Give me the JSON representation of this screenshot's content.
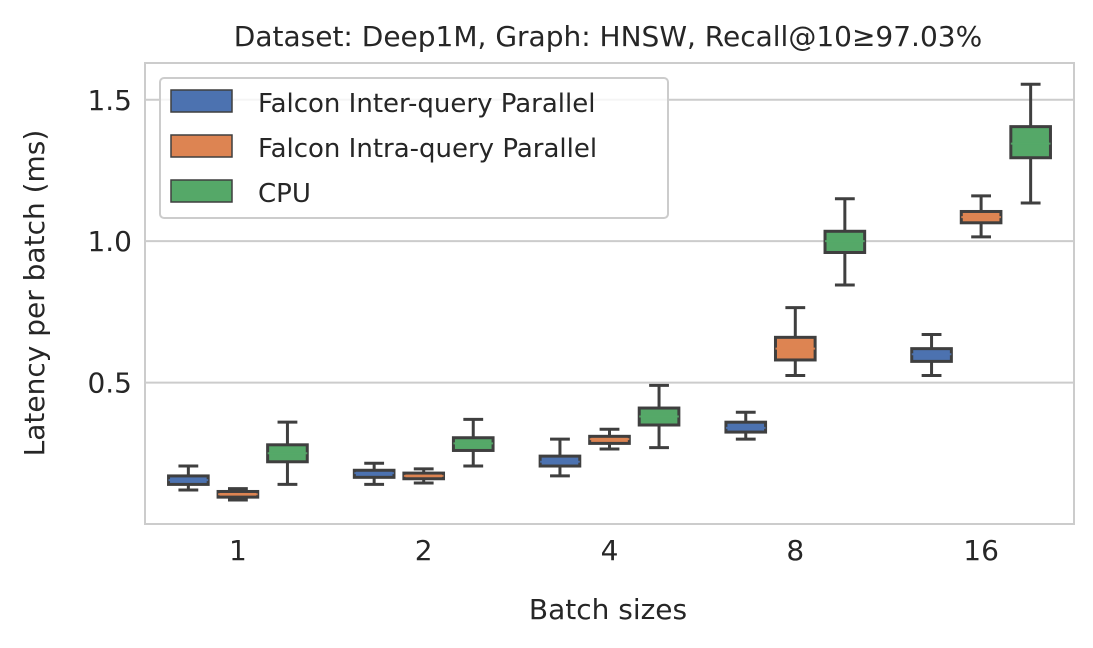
{
  "chart_data": {
    "type": "box",
    "title": "Dataset: Deep1M, Graph: HNSW, Recall@10≥97.03%",
    "xlabel": "Batch sizes",
    "ylabel": "Latency per batch (ms)",
    "categories": [
      "1",
      "2",
      "4",
      "8",
      "16"
    ],
    "ylim": [
      0.0,
      1.63
    ],
    "yticks": [
      0.5,
      1.0,
      1.5
    ],
    "ytick_labels": [
      "0.5",
      "1.0",
      "1.5"
    ],
    "grid": "horizontal",
    "legend_position": "top-left",
    "series": [
      {
        "name": "Falcon Inter-query Parallel",
        "color": "#4c72b0",
        "boxes": [
          {
            "min": 0.12,
            "q1": 0.14,
            "median": 0.155,
            "q3": 0.17,
            "max": 0.205
          },
          {
            "min": 0.14,
            "q1": 0.165,
            "median": 0.18,
            "q3": 0.19,
            "max": 0.215
          },
          {
            "min": 0.17,
            "q1": 0.205,
            "median": 0.22,
            "q3": 0.24,
            "max": 0.3
          },
          {
            "min": 0.3,
            "q1": 0.325,
            "median": 0.34,
            "q3": 0.36,
            "max": 0.395
          },
          {
            "min": 0.525,
            "q1": 0.575,
            "median": 0.6,
            "q3": 0.62,
            "max": 0.67
          }
        ]
      },
      {
        "name": "Falcon Intra-query Parallel",
        "color": "#dd8452",
        "boxes": [
          {
            "min": 0.085,
            "q1": 0.095,
            "median": 0.105,
            "q3": 0.115,
            "max": 0.125
          },
          {
            "min": 0.145,
            "q1": 0.16,
            "median": 0.17,
            "q3": 0.18,
            "max": 0.195
          },
          {
            "min": 0.265,
            "q1": 0.285,
            "median": 0.3,
            "q3": 0.31,
            "max": 0.335
          },
          {
            "min": 0.525,
            "q1": 0.58,
            "median": 0.62,
            "q3": 0.66,
            "max": 0.765
          },
          {
            "min": 1.015,
            "q1": 1.065,
            "median": 1.085,
            "q3": 1.105,
            "max": 1.16
          }
        ]
      },
      {
        "name": "CPU",
        "color": "#55a868",
        "boxes": [
          {
            "min": 0.14,
            "q1": 0.22,
            "median": 0.25,
            "q3": 0.28,
            "max": 0.36
          },
          {
            "min": 0.205,
            "q1": 0.26,
            "median": 0.285,
            "q3": 0.305,
            "max": 0.37
          },
          {
            "min": 0.27,
            "q1": 0.35,
            "median": 0.38,
            "q3": 0.41,
            "max": 0.49
          },
          {
            "min": 0.845,
            "q1": 0.96,
            "median": 1.0,
            "q3": 1.035,
            "max": 1.15
          },
          {
            "min": 1.135,
            "q1": 1.295,
            "median": 1.345,
            "q3": 1.405,
            "max": 1.555
          }
        ]
      }
    ]
  }
}
